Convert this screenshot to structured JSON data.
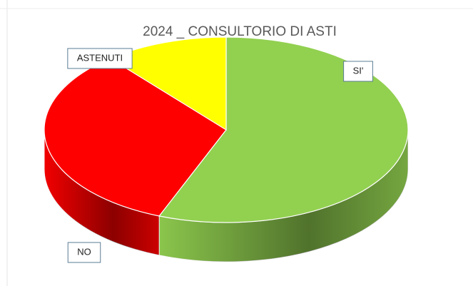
{
  "chart_data": {
    "type": "pie3d",
    "title": "2024 _ CONSULTORIO DI ASTI",
    "categories": [
      "SI'",
      "NO",
      "ASTENUTI"
    ],
    "values": [
      56,
      33,
      11
    ],
    "colors": [
      "#92d050",
      "#ff0000",
      "#ffff00"
    ]
  }
}
